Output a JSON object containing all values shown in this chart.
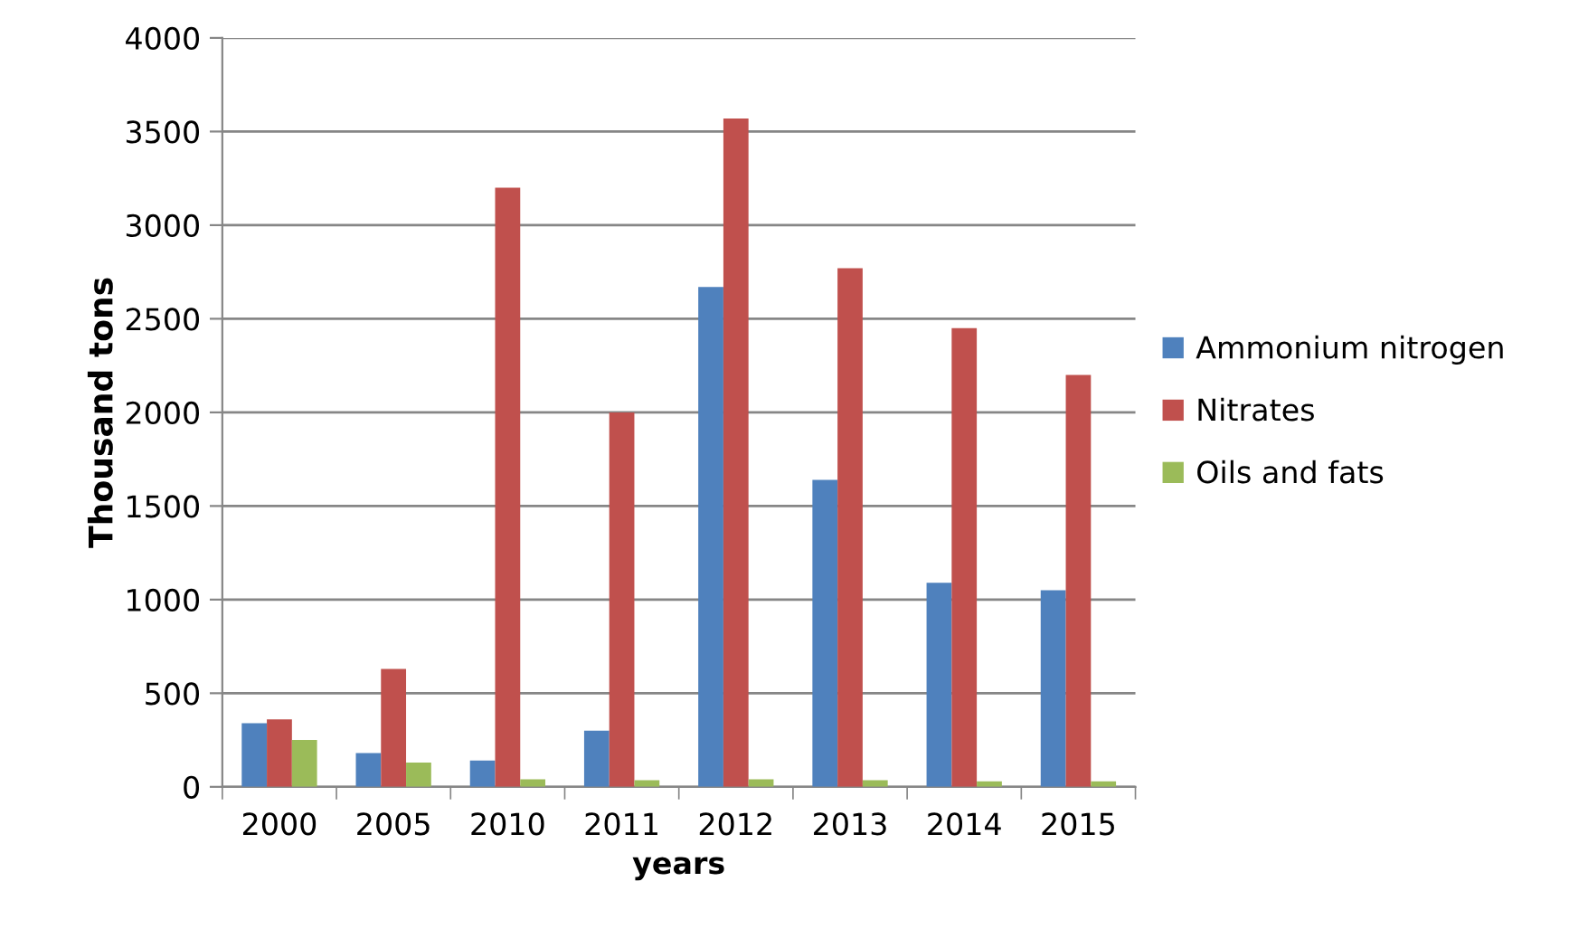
{
  "chart_data": {
    "type": "bar",
    "xlabel": "years",
    "ylabel": "Thousand tons",
    "categories": [
      "2000",
      "2005",
      "2010",
      "2011",
      "2012",
      "2013",
      "2014",
      "2015"
    ],
    "series": [
      {
        "name": "Ammonium nitrogen",
        "color": "#4f81bd",
        "values": [
          340,
          180,
          140,
          300,
          2670,
          1640,
          1090,
          1050
        ]
      },
      {
        "name": "Nitrates",
        "color": "#c0504d",
        "values": [
          360,
          630,
          3200,
          2000,
          3570,
          2770,
          2450,
          2200
        ]
      },
      {
        "name": "Oils and fats",
        "color": "#9bbb59",
        "values": [
          250,
          130,
          40,
          35,
          40,
          35,
          30,
          30
        ]
      }
    ],
    "ylim": [
      0,
      4000
    ],
    "yticks": [
      0,
      500,
      1000,
      1500,
      2000,
      2500,
      3000,
      3500,
      4000
    ],
    "grid": "y",
    "legend": "right"
  }
}
